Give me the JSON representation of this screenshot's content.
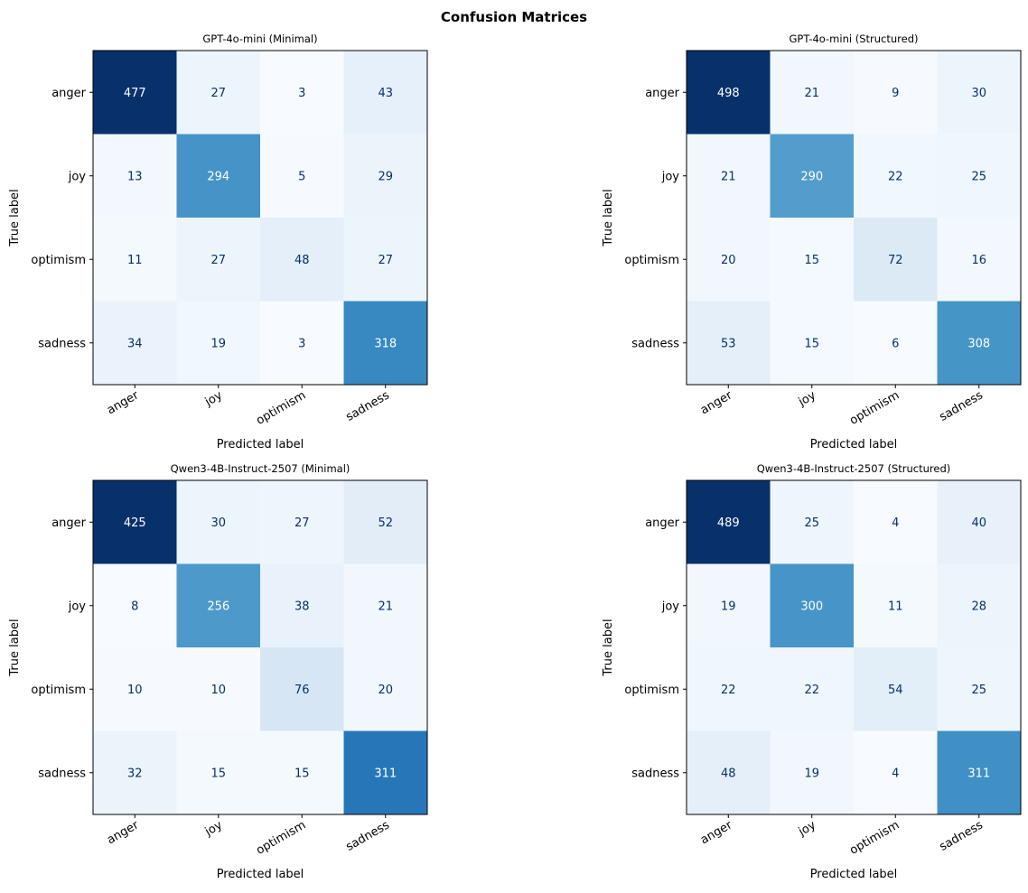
{
  "figure": {
    "title": "Confusion Matrices"
  },
  "chart_data": [
    {
      "type": "heatmap",
      "title": "GPT-4o-mini (Minimal)",
      "xlabel": "Predicted label",
      "ylabel": "True label",
      "x_categories": [
        "anger",
        "joy",
        "optimism",
        "sadness"
      ],
      "y_categories": [
        "anger",
        "joy",
        "optimism",
        "sadness"
      ],
      "matrix": [
        [
          477,
          27,
          3,
          43
        ],
        [
          13,
          294,
          5,
          29
        ],
        [
          11,
          27,
          48,
          27
        ],
        [
          34,
          19,
          3,
          318
        ]
      ],
      "colormap": "Blues",
      "grid": false
    },
    {
      "type": "heatmap",
      "title": "GPT-4o-mini (Structured)",
      "xlabel": "Predicted label",
      "ylabel": "True label",
      "x_categories": [
        "anger",
        "joy",
        "optimism",
        "sadness"
      ],
      "y_categories": [
        "anger",
        "joy",
        "optimism",
        "sadness"
      ],
      "matrix": [
        [
          498,
          21,
          9,
          30
        ],
        [
          21,
          290,
          22,
          25
        ],
        [
          20,
          15,
          72,
          16
        ],
        [
          53,
          15,
          6,
          308
        ]
      ],
      "colormap": "Blues",
      "grid": false
    },
    {
      "type": "heatmap",
      "title": "Qwen3-4B-Instruct-2507 (Minimal)",
      "xlabel": "Predicted label",
      "ylabel": "True label",
      "x_categories": [
        "anger",
        "joy",
        "optimism",
        "sadness"
      ],
      "y_categories": [
        "anger",
        "joy",
        "optimism",
        "sadness"
      ],
      "matrix": [
        [
          425,
          30,
          27,
          52
        ],
        [
          8,
          256,
          38,
          21
        ],
        [
          10,
          10,
          76,
          20
        ],
        [
          32,
          15,
          15,
          311
        ]
      ],
      "colormap": "Blues",
      "grid": false
    },
    {
      "type": "heatmap",
      "title": "Qwen3-4B-Instruct-2507 (Structured)",
      "xlabel": "Predicted label",
      "ylabel": "True label",
      "x_categories": [
        "anger",
        "joy",
        "optimism",
        "sadness"
      ],
      "y_categories": [
        "anger",
        "joy",
        "optimism",
        "sadness"
      ],
      "matrix": [
        [
          489,
          25,
          4,
          40
        ],
        [
          19,
          300,
          11,
          28
        ],
        [
          22,
          22,
          54,
          25
        ],
        [
          48,
          19,
          4,
          311
        ]
      ],
      "colormap": "Blues",
      "grid": false
    }
  ]
}
